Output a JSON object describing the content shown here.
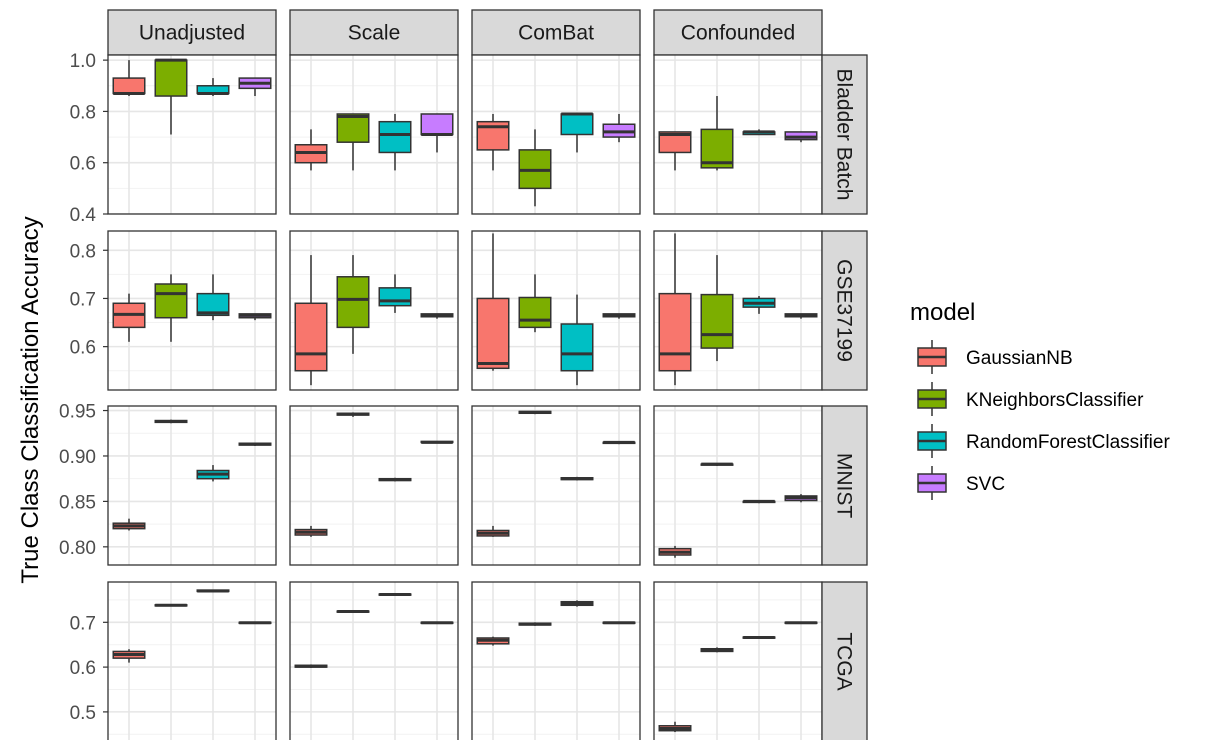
{
  "chart_data": {
    "type": "boxplot",
    "ylabel": "True Class Classification Accuracy",
    "legend": {
      "title": "model",
      "position": "right"
    },
    "models": [
      {
        "name": "GaussianNB",
        "color": "#F8766D"
      },
      {
        "name": "KNeighborsClassifier",
        "color": "#7CAE00"
      },
      {
        "name": "RandomForestClassifier",
        "color": "#00BFC4"
      },
      {
        "name": "SVC",
        "color": "#C77CFF"
      }
    ],
    "columns": [
      "Unadjusted",
      "Scale",
      "ComBat",
      "Confounded"
    ],
    "rows": [
      {
        "label": "Bladder Batch",
        "ylim": [
          0.4,
          1.02
        ],
        "ticks": [
          0.4,
          0.6,
          0.8,
          1.0
        ],
        "tick_labels": [
          "0.4",
          "0.6",
          "0.8",
          "1.0"
        ],
        "boxes": {
          "Unadjusted": [
            [
              0.86,
              0.87,
              0.87,
              0.93,
              1.0
            ],
            [
              0.71,
              0.86,
              1.0,
              1.0,
              1.0
            ],
            [
              0.86,
              0.87,
              0.87,
              0.9,
              0.93
            ],
            [
              0.86,
              0.89,
              0.91,
              0.93,
              0.93
            ]
          ],
          "Scale": [
            [
              0.57,
              0.6,
              0.64,
              0.67,
              0.73
            ],
            [
              0.57,
              0.68,
              0.78,
              0.79,
              0.79
            ],
            [
              0.57,
              0.64,
              0.71,
              0.76,
              0.79
            ],
            [
              0.64,
              0.71,
              0.71,
              0.79,
              0.79
            ]
          ],
          "ComBat": [
            [
              0.57,
              0.65,
              0.74,
              0.76,
              0.79
            ],
            [
              0.43,
              0.5,
              0.57,
              0.65,
              0.73
            ],
            [
              0.64,
              0.71,
              0.79,
              0.79,
              0.79
            ],
            [
              0.68,
              0.7,
              0.72,
              0.75,
              0.79
            ]
          ],
          "Confounded": [
            [
              0.57,
              0.64,
              0.71,
              0.72,
              0.72
            ],
            [
              0.57,
              0.58,
              0.6,
              0.73,
              0.86
            ],
            [
              0.71,
              0.71,
              0.72,
              0.72,
              0.73
            ],
            [
              0.68,
              0.69,
              0.7,
              0.72,
              0.72
            ]
          ]
        }
      },
      {
        "label": "GSE37199",
        "ylim": [
          0.51,
          0.84
        ],
        "ticks": [
          0.6,
          0.7,
          0.8
        ],
        "tick_labels": [
          "0.6",
          "0.7",
          "0.8"
        ],
        "boxes": {
          "Unadjusted": [
            [
              0.61,
              0.64,
              0.667,
              0.69,
              0.71
            ],
            [
              0.61,
              0.66,
              0.71,
              0.73,
              0.75
            ],
            [
              0.655,
              0.665,
              0.67,
              0.71,
              0.75
            ],
            [
              0.655,
              0.66,
              0.665,
              0.668,
              0.668
            ]
          ],
          "Scale": [
            [
              0.52,
              0.55,
              0.585,
              0.69,
              0.79
            ],
            [
              0.585,
              0.64,
              0.698,
              0.745,
              0.79
            ],
            [
              0.67,
              0.685,
              0.695,
              0.722,
              0.75
            ],
            [
              0.658,
              0.662,
              0.665,
              0.668,
              0.668
            ]
          ],
          "ComBat": [
            [
              0.55,
              0.555,
              0.565,
              0.7,
              0.835
            ],
            [
              0.63,
              0.64,
              0.655,
              0.702,
              0.75
            ],
            [
              0.52,
              0.55,
              0.585,
              0.647,
              0.708
            ],
            [
              0.658,
              0.662,
              0.665,
              0.668,
              0.668
            ]
          ],
          "Confounded": [
            [
              0.52,
              0.55,
              0.585,
              0.71,
              0.835
            ],
            [
              0.57,
              0.597,
              0.625,
              0.708,
              0.79
            ],
            [
              0.668,
              0.682,
              0.69,
              0.7,
              0.705
            ],
            [
              0.658,
              0.662,
              0.665,
              0.668,
              0.668
            ]
          ]
        }
      },
      {
        "label": "MNIST",
        "ylim": [
          0.78,
          0.955
        ],
        "ticks": [
          0.8,
          0.85,
          0.9,
          0.95
        ],
        "tick_labels": [
          "0.80",
          "0.85",
          "0.90",
          "0.95"
        ],
        "boxes": {
          "Unadjusted": [
            [
              0.818,
              0.82,
              0.823,
              0.826,
              0.831
            ],
            [
              0.936,
              0.937,
              0.938,
              0.939,
              0.94
            ],
            [
              0.872,
              0.875,
              0.88,
              0.884,
              0.89
            ],
            [
              0.911,
              0.912,
              0.913,
              0.914,
              0.914
            ]
          ],
          "Scale": [
            [
              0.811,
              0.813,
              0.816,
              0.819,
              0.823
            ],
            [
              0.943,
              0.945,
              0.946,
              0.947,
              0.948
            ],
            [
              0.872,
              0.873,
              0.874,
              0.875,
              0.876
            ],
            [
              0.914,
              0.915,
              0.915,
              0.916,
              0.916
            ]
          ],
          "ComBat": [
            [
              0.811,
              0.812,
              0.815,
              0.818,
              0.823
            ],
            [
              0.946,
              0.947,
              0.948,
              0.949,
              0.949
            ],
            [
              0.873,
              0.874,
              0.875,
              0.876,
              0.877
            ],
            [
              0.913,
              0.914,
              0.915,
              0.915,
              0.916
            ]
          ],
          "Confounded": [
            [
              0.788,
              0.791,
              0.794,
              0.798,
              0.801
            ],
            [
              0.889,
              0.89,
              0.891,
              0.891,
              0.892
            ],
            [
              0.848,
              0.849,
              0.85,
              0.85,
              0.851
            ],
            [
              0.849,
              0.851,
              0.854,
              0.856,
              0.858
            ]
          ]
        }
      },
      {
        "label": "TCGA",
        "ylim": [
          0.435,
          0.79
        ],
        "ticks": [
          0.5,
          0.6,
          0.7
        ],
        "tick_labels": [
          "0.5",
          "0.6",
          "0.7"
        ],
        "boxes": {
          "Unadjusted": [
            [
              0.61,
              0.62,
              0.628,
              0.635,
              0.64
            ],
            [
              0.736,
              0.737,
              0.738,
              0.739,
              0.74
            ],
            [
              0.768,
              0.769,
              0.77,
              0.772,
              0.773
            ],
            [
              0.697,
              0.698,
              0.699,
              0.7,
              0.701
            ]
          ],
          "Scale": [
            [
              0.598,
              0.6,
              0.602,
              0.604,
              0.606
            ],
            [
              0.722,
              0.723,
              0.724,
              0.725,
              0.726
            ],
            [
              0.76,
              0.761,
              0.762,
              0.763,
              0.764
            ],
            [
              0.697,
              0.698,
              0.699,
              0.7,
              0.701
            ]
          ],
          "ComBat": [
            [
              0.648,
              0.652,
              0.66,
              0.665,
              0.668
            ],
            [
              0.692,
              0.694,
              0.696,
              0.698,
              0.7
            ],
            [
              0.735,
              0.738,
              0.742,
              0.746,
              0.749
            ],
            [
              0.697,
              0.698,
              0.699,
              0.7,
              0.701
            ]
          ],
          "Confounded": [
            [
              0.455,
              0.458,
              0.463,
              0.469,
              0.478
            ],
            [
              0.633,
              0.635,
              0.638,
              0.641,
              0.644
            ],
            [
              0.664,
              0.665,
              0.666,
              0.667,
              0.668
            ],
            [
              0.697,
              0.698,
              0.699,
              0.7,
              0.701
            ]
          ]
        }
      }
    ]
  }
}
